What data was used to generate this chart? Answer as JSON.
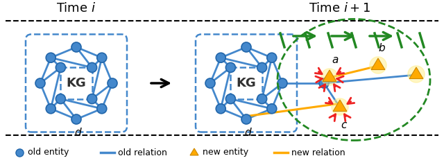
{
  "bg_color": "#ffffff",
  "node_color": "#4488cc",
  "node_edge_color": "#2266aa",
  "edge_color": "#4488cc",
  "new_entity_color": "#ffaa00",
  "new_relation_color": "#ffaa00",
  "red_arrow_color": "#ee2222",
  "green_color": "#228822",
  "dashed_border_color": "#228822",
  "title1": "Time $i$",
  "title2": "Time $i+1$",
  "label_d": "d",
  "label_a": "a",
  "label_b": "b",
  "label_c": "c",
  "legend_items": [
    "old entity",
    "old relation",
    "new entity",
    "new relation"
  ],
  "legend_colors": [
    "#4488cc",
    "#4488cc",
    "#ffaa00",
    "#ffaa00"
  ]
}
